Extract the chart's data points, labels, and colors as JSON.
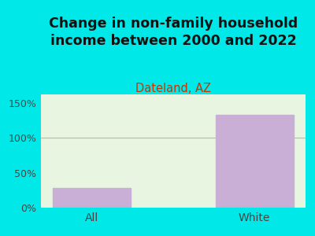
{
  "title": "Change in non-family household\nincome between 2000 and 2022",
  "subtitle": "Dateland, AZ",
  "categories": [
    "All",
    "White"
  ],
  "values": [
    28,
    133
  ],
  "bar_color": "#c9aed6",
  "background_color": "#00e8e8",
  "plot_bg_top": "#e8f5e0",
  "plot_bg_bottom": "#f5faf0",
  "title_fontsize": 12.5,
  "subtitle_fontsize": 10.5,
  "subtitle_color": "#cc3300",
  "title_color": "#111111",
  "tick_label_color": "#444444",
  "ylabel_ticks": [
    0,
    50,
    100,
    150
  ],
  "ylabel_tick_labels": [
    "0%",
    "50%",
    "100%",
    "150%"
  ],
  "ylim": [
    0,
    162
  ],
  "hline_y": 100,
  "hline_color": "#ddaaaa",
  "hline_lw": 0.8,
  "bar_width": 0.48,
  "xline_color": "#aaaaaa",
  "xline_lw": 0.8
}
